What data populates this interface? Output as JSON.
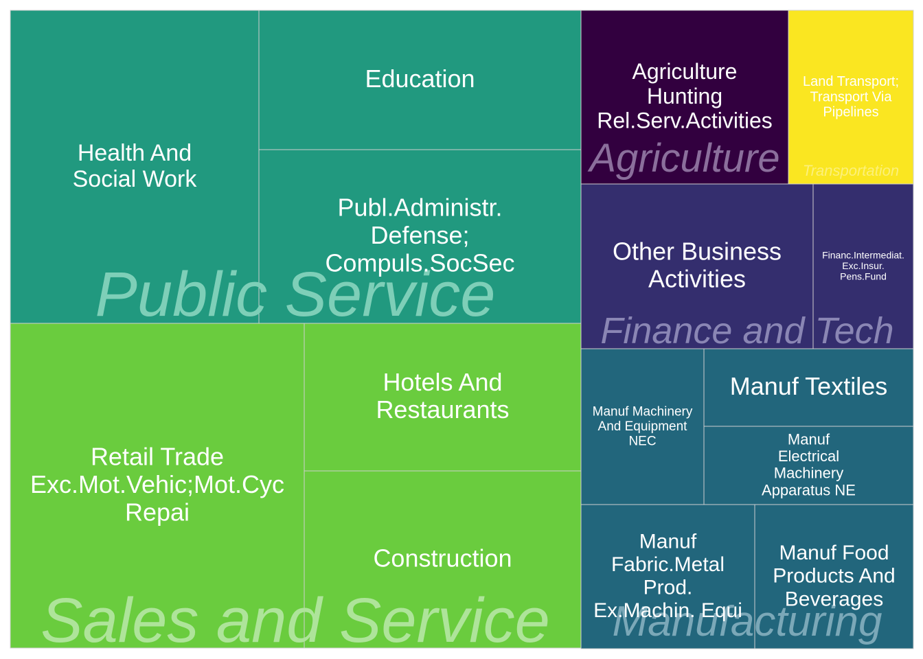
{
  "chart_data": {
    "type": "treemap",
    "title": "",
    "groups": [
      {
        "name": "Public Service",
        "color": "#21997f",
        "label_color": "#7ecfb8",
        "items": [
          {
            "name": "Health And Social Work",
            "lines": [
              "Health And",
              "Social Work"
            ]
          },
          {
            "name": "Education",
            "lines": [
              "Education"
            ]
          },
          {
            "name": "Publ.Administr. Defense; Compuls.SocSec",
            "lines": [
              "Publ.Administr.",
              "Defense;",
              "Compuls.SocSec"
            ]
          }
        ]
      },
      {
        "name": "Sales and Service",
        "color": "#6acc3e",
        "label_color": "#aee49a",
        "items": [
          {
            "name": "Retail Trade Exc.Mot.Vehic;Mot.Cyc Repai",
            "lines": [
              "Retail Trade",
              "Exc.Mot.Vehic;Mot.Cyc",
              "Repai"
            ]
          },
          {
            "name": "Hotels And Restaurants",
            "lines": [
              "Hotels And",
              "Restaurants"
            ]
          },
          {
            "name": "Construction",
            "lines": [
              "Construction"
            ]
          }
        ]
      },
      {
        "name": "Agriculture",
        "color": "#32003f",
        "label_color": "#8b6f9c",
        "items": [
          {
            "name": "Agriculture Hunting Rel.Serv.Activities",
            "lines": [
              "Agriculture",
              "Hunting",
              "Rel.Serv.Activities"
            ]
          }
        ]
      },
      {
        "name": "Transportation",
        "color": "#fae621",
        "label_color": "#fcf07a",
        "items": [
          {
            "name": "Land Transport; Transport Via Pipelines",
            "lines": [
              "Land Transport;",
              "Transport Via",
              "Pipelines"
            ]
          }
        ]
      },
      {
        "name": "Finance and Tech",
        "color": "#342e6e",
        "label_color": "#8a86b4",
        "items": [
          {
            "name": "Other Business Activities",
            "lines": [
              "Other Business",
              "Activities"
            ]
          },
          {
            "name": "Financ.Intermediat. Exc.Insur. Pens.Fund",
            "lines": [
              "Financ.Intermediat.",
              "Exc.Insur.",
              "Pens.Fund"
            ]
          }
        ]
      },
      {
        "name": "Manufacturing",
        "color": "#22667c",
        "label_color": "#7ba8b8",
        "items": [
          {
            "name": "Manuf Machinery And Equipment NEC",
            "lines": [
              "Manuf Machinery",
              "And Equipment",
              "NEC"
            ]
          },
          {
            "name": "Manuf Textiles",
            "lines": [
              "Manuf Textiles"
            ]
          },
          {
            "name": "Manuf Electrical Machinery Apparatus NE",
            "lines": [
              "Manuf",
              "Electrical",
              "Machinery",
              "Apparatus NE"
            ]
          },
          {
            "name": "Manuf Fabric.Metal Prod. Ex.Machin. Equi",
            "lines": [
              "Manuf",
              "Fabric.Metal",
              "Prod.",
              "Ex.Machin. Equi"
            ]
          },
          {
            "name": "Manuf Food Products And Beverages",
            "lines": [
              "Manuf Food",
              "Products And",
              "Beverages"
            ]
          }
        ]
      }
    ]
  }
}
